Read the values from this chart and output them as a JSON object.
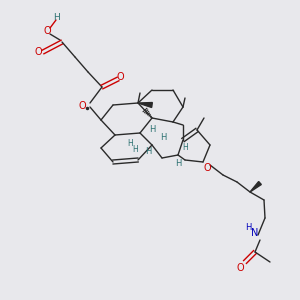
{
  "background_color": "#e8e8ec",
  "bond_color": "#2a2a2a",
  "red_color": "#cc0000",
  "teal_color": "#2a7070",
  "blue_color": "#0000bb",
  "figsize": [
    3.0,
    3.0
  ],
  "dpi": 100,
  "xlim": [
    0,
    300
  ],
  "ylim": [
    0,
    300
  ]
}
